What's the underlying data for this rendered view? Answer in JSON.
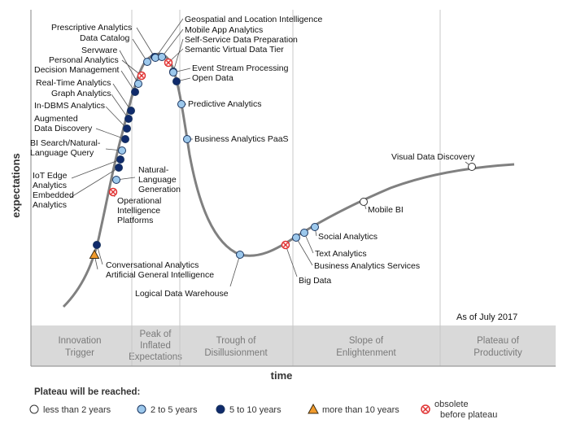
{
  "chart_data": {
    "type": "hype-cycle",
    "title": "",
    "xlabel": "time",
    "ylabel": "expectations",
    "as_of": "As of July 2017",
    "colors": {
      "lt2": "#ffffff",
      "2to5": "#9cc8ec",
      "5to10": "#0f2a6b",
      "gt10": "#f29b2c",
      "obsolete": "#e03030",
      "curve": "#808080",
      "band": "#d9d9d9"
    },
    "phases": [
      {
        "line1": "Innovation",
        "line2": "Trigger",
        "line3": ""
      },
      {
        "line1": "Peak of",
        "line2": "Inflated",
        "line3": "Expectations"
      },
      {
        "line1": "Trough of",
        "line2": "Disillusionment",
        "line3": ""
      },
      {
        "line1": "Slope of",
        "line2": "Enlightenment",
        "line3": ""
      },
      {
        "line1": "Plateau of",
        "line2": "Productivity",
        "line3": ""
      }
    ],
    "legend": {
      "title": "Plateau will be reached:",
      "items": [
        {
          "key": "lt2",
          "label": "less than 2 years"
        },
        {
          "key": "2to5",
          "label": "2 to 5 years"
        },
        {
          "key": "5to10",
          "label": "5 to 10 years"
        },
        {
          "key": "gt10",
          "label": "more than 10 years"
        },
        {
          "key": "obsolete",
          "label": "obsolete",
          "label2": "before plateau"
        }
      ]
    },
    "technologies": [
      {
        "name": "Artificial General Intelligence",
        "plateau": "gt10"
      },
      {
        "name": "Conversational Analytics",
        "plateau": "5to10"
      },
      {
        "name": "Operational Intelligence Platforms",
        "plateau": "obsolete"
      },
      {
        "name": "Natural-Language Generation",
        "plateau": "2to5"
      },
      {
        "name": "Embedded Analytics",
        "plateau": "5to10"
      },
      {
        "name": "IoT Edge Analytics",
        "plateau": "5to10"
      },
      {
        "name": "BI Search/Natural-Language Query",
        "plateau": "2to5"
      },
      {
        "name": "Augmented Data Discovery",
        "plateau": "5to10"
      },
      {
        "name": "In-DBMS Analytics",
        "plateau": "5to10"
      },
      {
        "name": "Graph Analytics",
        "plateau": "5to10"
      },
      {
        "name": "Real-Time Analytics",
        "plateau": "5to10"
      },
      {
        "name": "Decision Management",
        "plateau": "5to10"
      },
      {
        "name": "Personal Analytics",
        "plateau": "obsolete"
      },
      {
        "name": "Servware",
        "plateau": "2to5"
      },
      {
        "name": "Data Catalog",
        "plateau": "2to5"
      },
      {
        "name": "Prescriptive Analytics",
        "plateau": "5to10"
      },
      {
        "name": "Geospatial and Location Intelligence",
        "plateau": "2to5"
      },
      {
        "name": "Mobile App Analytics",
        "plateau": "2to5"
      },
      {
        "name": "Self-Service Data Preparation",
        "plateau": "2to5"
      },
      {
        "name": "Semantic Virtual Data Tier",
        "plateau": "obsolete"
      },
      {
        "name": "Event Stream Processing",
        "plateau": "2to5"
      },
      {
        "name": "Open Data",
        "plateau": "5to10"
      },
      {
        "name": "Predictive Analytics",
        "plateau": "2to5"
      },
      {
        "name": "Business Analytics PaaS",
        "plateau": "2to5"
      },
      {
        "name": "Logical Data Warehouse",
        "plateau": "2to5"
      },
      {
        "name": "Big Data",
        "plateau": "obsolete"
      },
      {
        "name": "Business Analytics Services",
        "plateau": "2to5"
      },
      {
        "name": "Text Analytics",
        "plateau": "2to5"
      },
      {
        "name": "Social Analytics",
        "plateau": "2to5"
      },
      {
        "name": "Mobile BI",
        "plateau": "lt2"
      },
      {
        "name": "Visual Data Discovery",
        "plateau": "lt2"
      }
    ]
  }
}
